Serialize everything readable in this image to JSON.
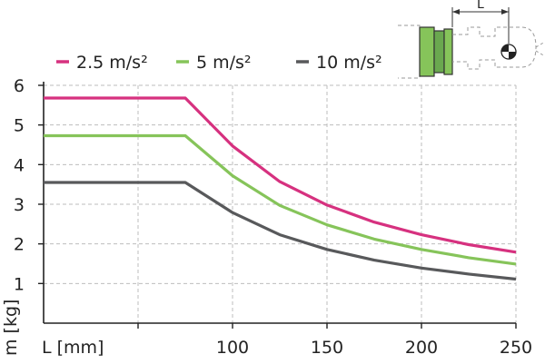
{
  "chart_data": {
    "type": "line",
    "xlabel": "L [mm]",
    "ylabel": "m [kg]",
    "xlim": [
      0,
      250
    ],
    "ylim": [
      0,
      6
    ],
    "x_ticks": [
      "100",
      "150",
      "200",
      "250"
    ],
    "y_ticks": [
      "1",
      "2",
      "3",
      "4",
      "5",
      "6"
    ],
    "grid": true,
    "legend_position": "top",
    "series": [
      {
        "name": "2.5 m/s²",
        "color": "#d6317f",
        "x": [
          0,
          75,
          100,
          125,
          150,
          175,
          200,
          225,
          250
        ],
        "y": [
          5.68,
          5.68,
          4.47,
          3.57,
          2.98,
          2.55,
          2.23,
          1.98,
          1.79
        ]
      },
      {
        "name": "5 m/s²",
        "color": "#86c45a",
        "x": [
          0,
          75,
          100,
          125,
          150,
          175,
          200,
          225,
          250
        ],
        "y": [
          4.73,
          4.73,
          3.72,
          2.97,
          2.48,
          2.12,
          1.86,
          1.65,
          1.49
        ]
      },
      {
        "name": "10 m/s²",
        "color": "#58595b",
        "x": [
          0,
          75,
          100,
          125,
          150,
          175,
          200,
          225,
          250
        ],
        "y": [
          3.55,
          3.55,
          2.79,
          2.23,
          1.86,
          1.59,
          1.39,
          1.24,
          1.11
        ]
      }
    ]
  },
  "diagram": {
    "dimension_label": "L"
  }
}
